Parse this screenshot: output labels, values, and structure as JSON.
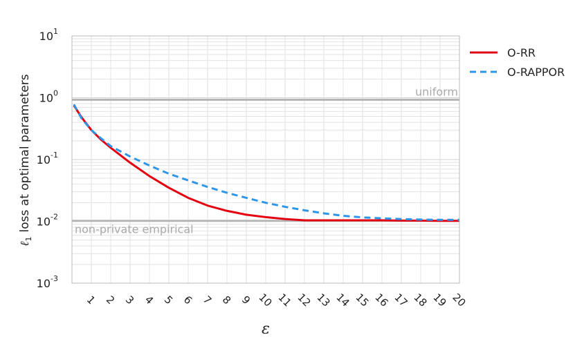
{
  "chart_data": {
    "type": "line",
    "xlabel": "ε",
    "ylabel_main": "loss at optimal parameters",
    "ylabel_symbol": "ℓ",
    "ylabel_sub": "1",
    "yscale": "log",
    "ylim": [
      0.001,
      10
    ],
    "xlim": [
      0,
      20
    ],
    "grid": true,
    "legend_position": "outside-right",
    "x_ticks": [
      "1",
      "2",
      "3",
      "4",
      "5",
      "6",
      "7",
      "8",
      "9",
      "10",
      "11",
      "12",
      "13",
      "14",
      "15",
      "16",
      "17",
      "18",
      "19",
      "20"
    ],
    "y_ticks": [
      {
        "base": "10",
        "exp": "1",
        "value": 10
      },
      {
        "base": "10",
        "exp": "0",
        "value": 1
      },
      {
        "base": "10",
        "exp": "-1",
        "value": 0.1
      },
      {
        "base": "10",
        "exp": "-2",
        "value": 0.01
      },
      {
        "base": "10",
        "exp": "-3",
        "value": 0.001
      }
    ],
    "reference_lines": [
      {
        "label": "uniform",
        "value": 0.93
      },
      {
        "label": "non-private empirical",
        "value": 0.0102
      }
    ],
    "series": [
      {
        "name": "O-RR",
        "color": "#e3000f",
        "dash": "solid",
        "x": [
          0.1,
          0.5,
          1,
          1.5,
          2,
          3,
          4,
          5,
          6,
          7,
          8,
          9,
          10,
          11,
          12,
          13,
          14,
          15,
          16,
          17,
          18,
          19,
          20
        ],
        "y": [
          0.75,
          0.48,
          0.3,
          0.21,
          0.155,
          0.089,
          0.054,
          0.035,
          0.024,
          0.018,
          0.0148,
          0.0128,
          0.0117,
          0.0109,
          0.0104,
          0.0104,
          0.0104,
          0.0104,
          0.0104,
          0.0103,
          0.0103,
          0.0102,
          0.0102
        ]
      },
      {
        "name": "O-RAPPOR",
        "color": "#2e96e8",
        "dash": "dashed",
        "x": [
          0.1,
          0.5,
          1,
          1.5,
          2,
          3,
          4,
          5,
          6,
          7,
          8,
          9,
          10,
          11,
          12,
          13,
          14,
          15,
          16,
          17,
          18,
          19,
          20
        ],
        "y": [
          0.78,
          0.46,
          0.3,
          0.22,
          0.165,
          0.112,
          0.08,
          0.059,
          0.046,
          0.036,
          0.029,
          0.024,
          0.02,
          0.0172,
          0.0151,
          0.0135,
          0.0123,
          0.0116,
          0.0112,
          0.0109,
          0.0107,
          0.0106,
          0.0106
        ]
      }
    ]
  }
}
